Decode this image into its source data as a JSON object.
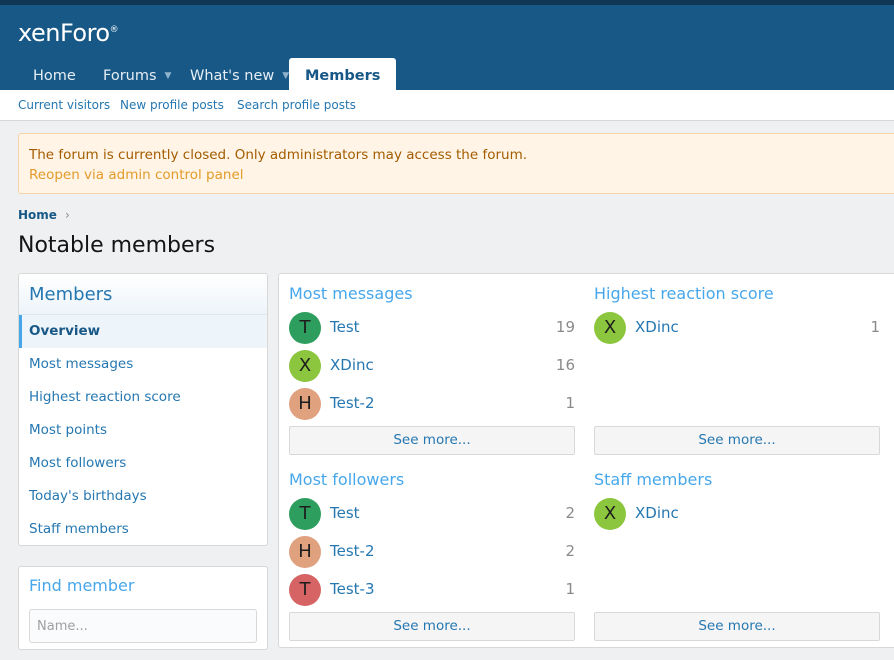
{
  "header": {
    "logo": "xenForo",
    "logo_mark": "®",
    "nav": [
      {
        "label": "Home"
      },
      {
        "label": "Forums"
      },
      {
        "label": "What's new"
      },
      {
        "label": "Members"
      }
    ]
  },
  "subnav": {
    "items": [
      "Current visitors",
      "New profile posts",
      "Search profile posts"
    ]
  },
  "notice": {
    "text": "The forum is currently closed. Only administrators may access the forum.",
    "link": "Reopen via admin control panel"
  },
  "breadcrumb": {
    "home": "Home",
    "sep": "›"
  },
  "page_title": "Notable members",
  "sidebar": {
    "title": "Members",
    "items": [
      {
        "label": "Overview"
      },
      {
        "label": "Most messages"
      },
      {
        "label": "Highest reaction score"
      },
      {
        "label": "Most points"
      },
      {
        "label": "Most followers"
      },
      {
        "label": "Today's birthdays"
      },
      {
        "label": "Staff members"
      }
    ]
  },
  "find_member": {
    "title": "Find member",
    "placeholder": "Name..."
  },
  "colors": {
    "T_green": "#2e9e5e",
    "X_lime": "#8cc63f",
    "H_peach": "#e0a17e",
    "T_red": "#d66464"
  },
  "panels": {
    "most_messages": {
      "title": "Most messages",
      "members": [
        {
          "initial": "T",
          "name": "Test",
          "count": "19"
        },
        {
          "initial": "X",
          "name": "XDinc",
          "count": "16"
        },
        {
          "initial": "H",
          "name": "Test-2",
          "count": "1"
        }
      ],
      "see_more": "See more..."
    },
    "highest_reaction": {
      "title": "Highest reaction score",
      "members": [
        {
          "initial": "X",
          "name": "XDinc",
          "count": "1"
        }
      ],
      "see_more": "See more..."
    },
    "most_followers": {
      "title": "Most followers",
      "members": [
        {
          "initial": "T",
          "name": "Test",
          "count": "2"
        },
        {
          "initial": "H",
          "name": "Test-2",
          "count": "2"
        },
        {
          "initial": "T",
          "name": "Test-3",
          "count": "1"
        }
      ],
      "see_more": "See more..."
    },
    "staff_members": {
      "title": "Staff members",
      "members": [
        {
          "initial": "X",
          "name": "XDinc",
          "count": ""
        }
      ],
      "see_more": "See more..."
    }
  }
}
